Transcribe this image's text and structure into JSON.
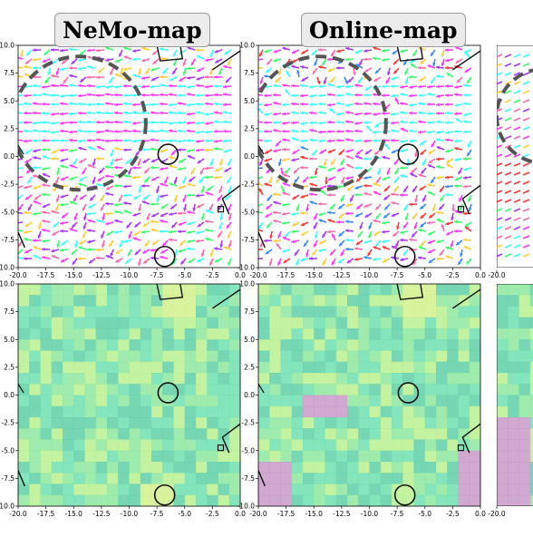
{
  "chart_data": [
    {
      "type": "quiver",
      "title": "NeMo-map",
      "xlabel": "",
      "ylabel": "",
      "xlim": [
        -20.0,
        0.0
      ],
      "ylim": [
        -10.0,
        10.0
      ],
      "xticks": [
        "-20.0",
        "-17.5",
        "-15.0",
        "-12.5",
        "-10.0",
        "-7.5",
        "-5.0",
        "-2.5",
        "0.0"
      ],
      "yticks": [
        "10.0",
        "7.5",
        "5.0",
        "2.5",
        "0.0",
        "-2.5",
        "-5.0",
        "-7.5",
        "-10.0"
      ],
      "highlight_circle": {
        "x": -14.5,
        "y": 3.0,
        "r": 6.0
      },
      "dominant_direction": "west in upper region, south-west elsewhere"
    },
    {
      "type": "quiver",
      "title": "Online-map",
      "xlabel": "",
      "ylabel": "",
      "xlim": [
        -20.0,
        0.0
      ],
      "ylim": [
        -10.0,
        10.0
      ],
      "xticks": [
        "-20.0",
        "-17.5",
        "-15.0",
        "-12.5",
        "-10.0",
        "-7.5",
        "-5.0",
        "-2.5",
        "0.0"
      ],
      "yticks": [
        "10.0",
        "7.5",
        "5.0",
        "2.5",
        "0.0",
        "-2.5",
        "-5.0",
        "-7.5",
        "-10.0"
      ],
      "highlight_circle": {
        "x": -14.5,
        "y": 3.0,
        "r": 6.0
      },
      "dominant_direction": "mixed, west in upper region"
    },
    {
      "type": "heatmap",
      "xlim": [
        -20.0,
        0.0
      ],
      "ylim": [
        -10.0,
        10.0
      ],
      "xticks": [
        "-20.0",
        "-17.5",
        "-15.0",
        "-12.5",
        "-10.0",
        "-7.5",
        "-5.0",
        "-2.5",
        "0.0"
      ],
      "yticks": [
        "10.0",
        "7.5",
        "5.0",
        "2.5",
        "0.0",
        "-2.5",
        "-5.0",
        "-7.5",
        "-10.0"
      ],
      "colormap": "viridis-light",
      "notes": "mostly teal/green cells, light yellow patches"
    },
    {
      "type": "heatmap",
      "xlim": [
        -20.0,
        0.0
      ],
      "ylim": [
        -10.0,
        10.0
      ],
      "xticks": [
        "-20.0",
        "-17.5",
        "-15.0",
        "-12.5",
        "-10.0",
        "-7.5",
        "-5.0",
        "-2.5",
        "0.0"
      ],
      "yticks": [
        "10.0",
        "7.5",
        "5.0",
        "2.5",
        "0.0",
        "-2.5",
        "-5.0",
        "-7.5",
        "-10.0"
      ],
      "colormap": "viridis-light",
      "notes": "teal/green cells with purple patches in lower left and right"
    }
  ],
  "colors": {
    "arrow_palette": [
      "#ff33ff",
      "#33ffff",
      "#ff66aa",
      "#aa33ff",
      "#33ff66",
      "#ffcc33",
      "#3388ff",
      "#ff3333"
    ],
    "heat_palette": [
      "#6ee0b0",
      "#8ee8a0",
      "#b8f090",
      "#5fd0a8",
      "#7ad8c0",
      "#c899c8",
      "#d2f08c"
    ],
    "obstacle": "#111111",
    "highlight_circle": "#555555"
  }
}
